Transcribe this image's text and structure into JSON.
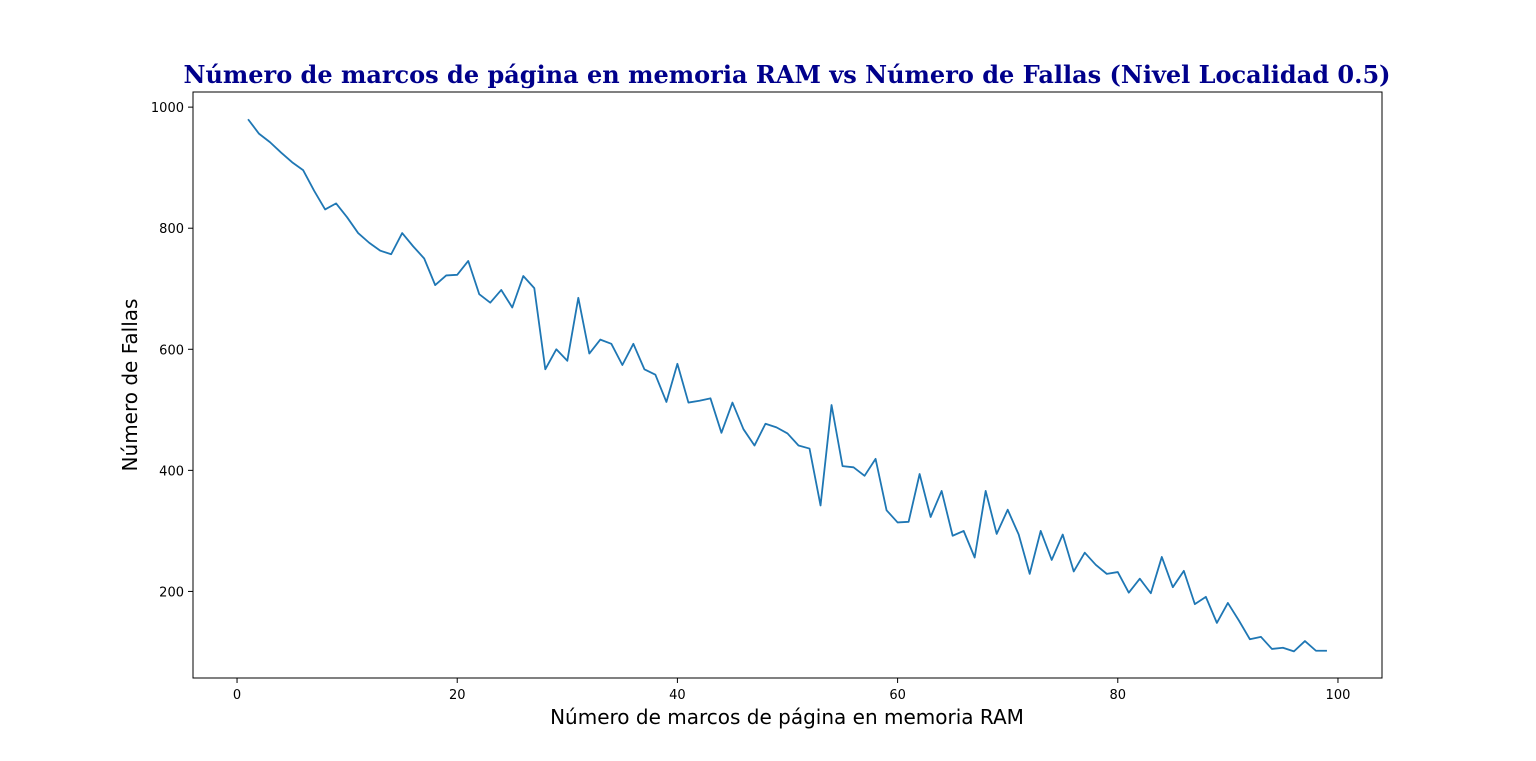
{
  "chart_data": {
    "type": "line",
    "title": "Número de marcos de página en memoria RAM vs Número de Fallas (Nivel Localidad 0.5)",
    "xlabel": "Número de marcos de página en memoria RAM",
    "ylabel": "Número de Fallas",
    "xlim": [
      -4,
      104
    ],
    "ylim": [
      57,
      1025
    ],
    "xticks": [
      0,
      20,
      40,
      60,
      80,
      100
    ],
    "yticks": [
      200,
      400,
      600,
      800,
      1000
    ],
    "grid": false,
    "legend": "none",
    "title_color": "#00008b",
    "line_color": "#1f77b4",
    "series": [
      {
        "x": [
          1,
          2,
          3,
          4,
          5,
          6,
          7,
          8,
          9,
          10,
          11,
          12,
          13,
          14,
          15,
          16,
          17,
          18,
          19,
          20,
          21,
          22,
          23,
          24,
          25,
          26,
          27,
          28,
          29,
          30,
          31,
          32,
          33,
          34,
          35,
          36,
          37,
          38,
          39,
          40,
          41,
          42,
          43,
          44,
          45,
          46,
          47,
          48,
          49,
          50,
          51,
          52,
          53,
          54,
          55,
          56,
          57,
          58,
          59,
          60,
          61,
          62,
          63,
          64,
          65,
          66,
          67,
          68,
          69,
          70,
          71,
          72,
          73,
          74,
          75,
          76,
          77,
          78,
          79,
          80,
          81,
          82,
          83,
          84,
          85,
          86,
          87,
          88,
          89,
          90,
          91,
          92,
          93,
          94,
          95,
          96,
          97,
          98,
          99
        ],
        "values": [
          980,
          956,
          942,
          925,
          909,
          896,
          862,
          831,
          841,
          818,
          792,
          776,
          763,
          757,
          792,
          770,
          750,
          706,
          722,
          723,
          746,
          691,
          677,
          698,
          669,
          721,
          701,
          567,
          600,
          581,
          685,
          593,
          616,
          609,
          574,
          609,
          567,
          558,
          513,
          576,
          512,
          515,
          519,
          462,
          512,
          468,
          441,
          477,
          471,
          461,
          441,
          436,
          342,
          508,
          407,
          405,
          391,
          419,
          334,
          314,
          315,
          394,
          323,
          366,
          292,
          300,
          256,
          366,
          295,
          335,
          294,
          229,
          300,
          252,
          294,
          233,
          264,
          244,
          229,
          232,
          198,
          221,
          197,
          257,
          207,
          234,
          179,
          191,
          148,
          181,
          152,
          121,
          125,
          105,
          107,
          101,
          118,
          102,
          102
        ]
      }
    ]
  }
}
